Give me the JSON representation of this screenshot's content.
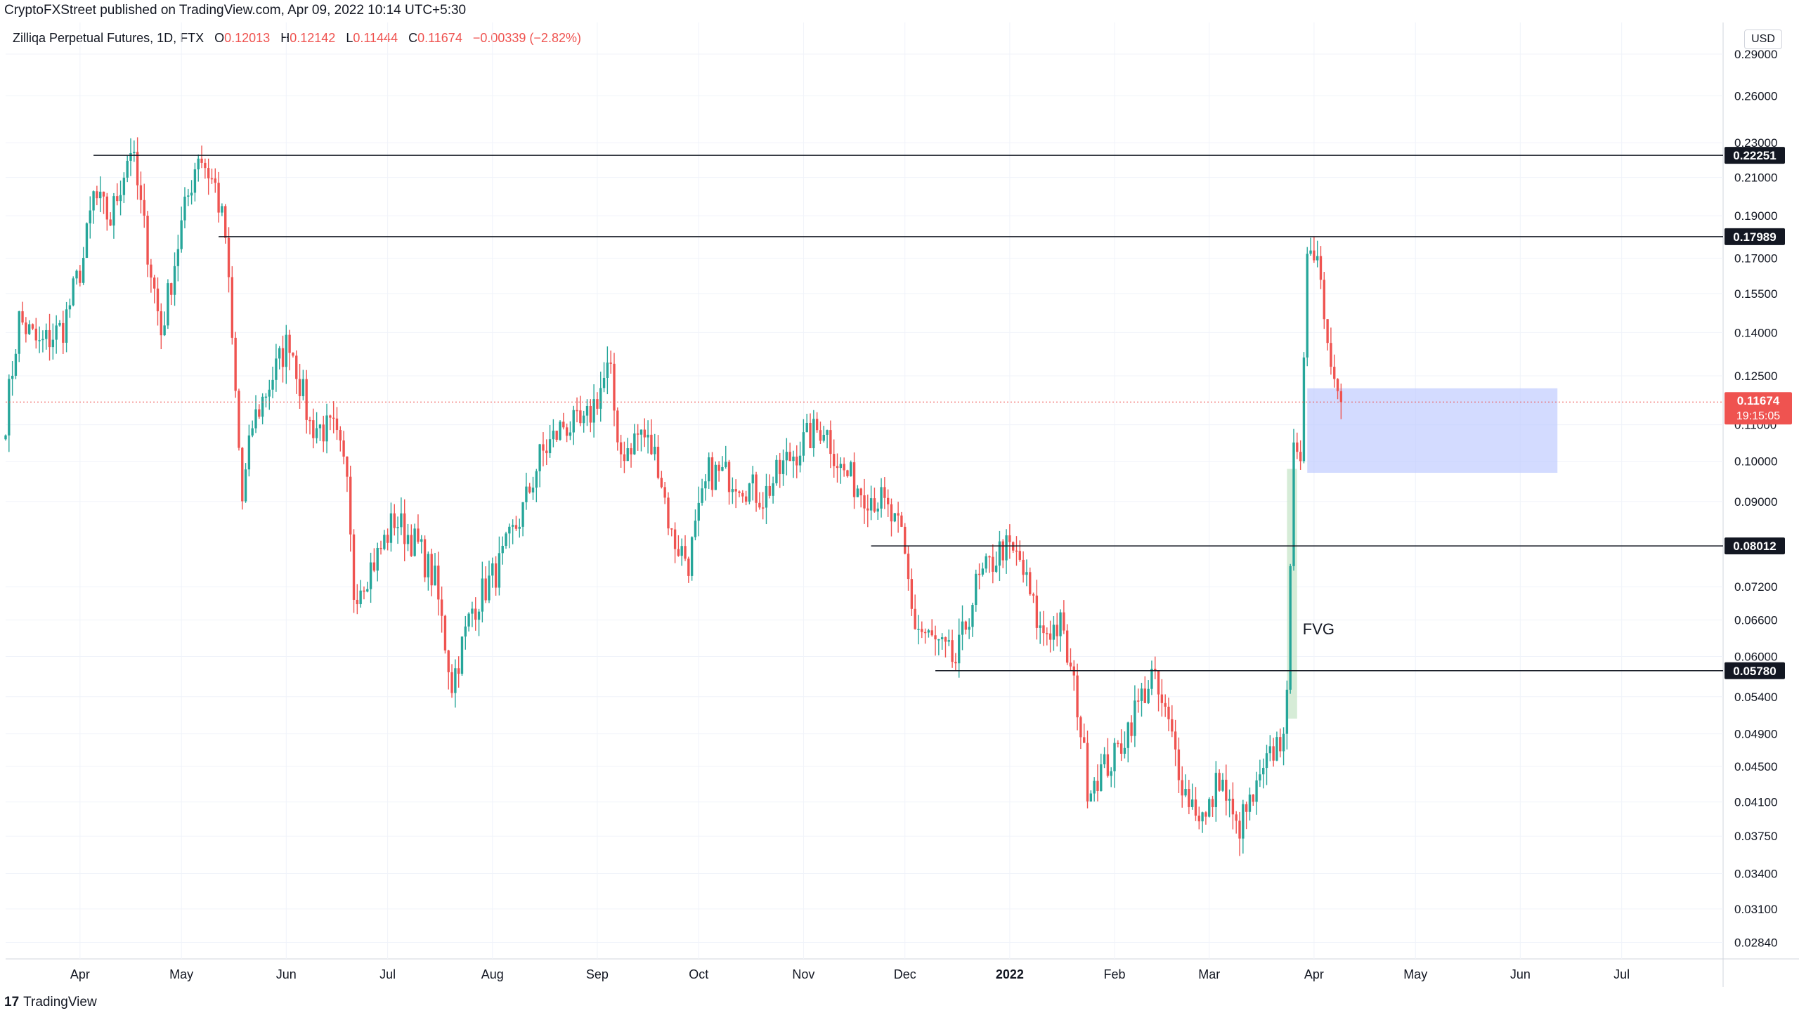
{
  "header": {
    "published": "CryptoFXStreet published on TradingView.com, Apr 09, 2022 10:14 UTC+5:30"
  },
  "legend": {
    "symbol": "Zilliqa Perpetual Futures, 1D, FTX",
    "o_label": "O",
    "o_value": "0.12013",
    "h_label": "H",
    "h_value": "0.12142",
    "l_label": "L",
    "l_value": "0.11444",
    "c_label": "C",
    "c_value": "0.11674",
    "change": "−0.00339 (−2.82%)"
  },
  "currency": "USD",
  "footer": {
    "logo": "17",
    "brand": "TradingView"
  },
  "colors": {
    "up": "#26a69a",
    "down": "#ef5350",
    "grid": "#f0f3fa",
    "zone": "#bcc8ff",
    "fvg": "#c8e6c9",
    "level": "#131722"
  },
  "chart_data": {
    "type": "candlestick",
    "title": "",
    "xlabel": "",
    "ylabel": "",
    "y_scale": "log",
    "ylim": [
      0.0272,
      0.315
    ],
    "xlim": [
      "2021-03-10",
      "2022-07-31"
    ],
    "grid": true,
    "y_ticks": [
      "0.29000",
      "0.26000",
      "0.23000",
      "0.21000",
      "0.19000",
      "0.17000",
      "0.15500",
      "0.14000",
      "0.12500",
      "0.11000",
      "0.10000",
      "0.09000",
      "0.07200",
      "0.06600",
      "0.06000",
      "0.05400",
      "0.04900",
      "0.04500",
      "0.04100",
      "0.03750",
      "0.03400",
      "0.03100",
      "0.02840"
    ],
    "x_ticks": [
      {
        "date": "2021-04-01",
        "label": "Apr",
        "bold": false
      },
      {
        "date": "2021-05-01",
        "label": "May",
        "bold": false
      },
      {
        "date": "2021-06-01",
        "label": "Jun",
        "bold": false
      },
      {
        "date": "2021-07-01",
        "label": "Jul",
        "bold": false
      },
      {
        "date": "2021-08-01",
        "label": "Aug",
        "bold": false
      },
      {
        "date": "2021-09-01",
        "label": "Sep",
        "bold": false
      },
      {
        "date": "2021-10-01",
        "label": "Oct",
        "bold": false
      },
      {
        "date": "2021-11-01",
        "label": "Nov",
        "bold": false
      },
      {
        "date": "2021-12-01",
        "label": "Dec",
        "bold": false
      },
      {
        "date": "2022-01-01",
        "label": "2022",
        "bold": true
      },
      {
        "date": "2022-02-01",
        "label": "Feb",
        "bold": false
      },
      {
        "date": "2022-03-01",
        "label": "Mar",
        "bold": false
      },
      {
        "date": "2022-04-01",
        "label": "Apr",
        "bold": false
      },
      {
        "date": "2022-05-01",
        "label": "May",
        "bold": false
      },
      {
        "date": "2022-06-01",
        "label": "Jun",
        "bold": false
      },
      {
        "date": "2022-07-01",
        "label": "Jul",
        "bold": false
      }
    ],
    "levels": [
      {
        "value": 0.22251,
        "label": "0.22251",
        "from": "2021-04-05"
      },
      {
        "value": 0.17989,
        "label": "0.17989",
        "from": "2021-05-12"
      },
      {
        "value": 0.08012,
        "label": "0.08012",
        "from": "2021-11-21"
      },
      {
        "value": 0.0578,
        "label": "0.05780",
        "from": "2021-12-10"
      }
    ],
    "last_price": {
      "value": 0.11674,
      "label": "0.11674",
      "countdown": "19:15:05"
    },
    "zone": {
      "from": "2022-03-30",
      "to": "2022-06-12",
      "high": 0.121,
      "low": 0.097
    },
    "fvg": {
      "from": "2022-03-24",
      "to": "2022-03-27",
      "high": 0.098,
      "low": 0.051,
      "label": "FVG"
    },
    "waypoints": [
      [
        "2021-03-10",
        0.112
      ],
      [
        "2021-03-14",
        0.145
      ],
      [
        "2021-03-20",
        0.135
      ],
      [
        "2021-03-27",
        0.142
      ],
      [
        "2021-04-02",
        0.17
      ],
      [
        "2021-04-05",
        0.2
      ],
      [
        "2021-04-10",
        0.188
      ],
      [
        "2021-04-16",
        0.228
      ],
      [
        "2021-04-22",
        0.165
      ],
      [
        "2021-04-25",
        0.14
      ],
      [
        "2021-05-01",
        0.185
      ],
      [
        "2021-05-06",
        0.225
      ],
      [
        "2021-05-11",
        0.205
      ],
      [
        "2021-05-14",
        0.18
      ],
      [
        "2021-05-19",
        0.09
      ],
      [
        "2021-05-22",
        0.11
      ],
      [
        "2021-05-26",
        0.12
      ],
      [
        "2021-06-02",
        0.138
      ],
      [
        "2021-06-08",
        0.11
      ],
      [
        "2021-06-15",
        0.108
      ],
      [
        "2021-06-19",
        0.096
      ],
      [
        "2021-06-21",
        0.071
      ],
      [
        "2021-06-28",
        0.078
      ],
      [
        "2021-07-03",
        0.086
      ],
      [
        "2021-07-10",
        0.08
      ],
      [
        "2021-07-15",
        0.073
      ],
      [
        "2021-07-20",
        0.056
      ],
      [
        "2021-07-26",
        0.068
      ],
      [
        "2021-08-03",
        0.076
      ],
      [
        "2021-08-10",
        0.088
      ],
      [
        "2021-08-15",
        0.101
      ],
      [
        "2021-08-22",
        0.11
      ],
      [
        "2021-08-28",
        0.109
      ],
      [
        "2021-09-05",
        0.129
      ],
      [
        "2021-09-07",
        0.101
      ],
      [
        "2021-09-14",
        0.108
      ],
      [
        "2021-09-19",
        0.1
      ],
      [
        "2021-09-23",
        0.082
      ],
      [
        "2021-09-28",
        0.077
      ],
      [
        "2021-10-04",
        0.097
      ],
      [
        "2021-10-12",
        0.096
      ],
      [
        "2021-10-20",
        0.091
      ],
      [
        "2021-10-27",
        0.1
      ],
      [
        "2021-11-02",
        0.106
      ],
      [
        "2021-11-07",
        0.11
      ],
      [
        "2021-11-12",
        0.098
      ],
      [
        "2021-11-18",
        0.093
      ],
      [
        "2021-11-24",
        0.09
      ],
      [
        "2021-11-30",
        0.082
      ],
      [
        "2021-12-04",
        0.065
      ],
      [
        "2021-12-10",
        0.062
      ],
      [
        "2021-12-16",
        0.059
      ],
      [
        "2021-12-22",
        0.072
      ],
      [
        "2021-12-30",
        0.08
      ],
      [
        "2022-01-04",
        0.077
      ],
      [
        "2022-01-10",
        0.064
      ],
      [
        "2022-01-16",
        0.065
      ],
      [
        "2022-01-21",
        0.053
      ],
      [
        "2022-01-24",
        0.043
      ],
      [
        "2022-02-01",
        0.046
      ],
      [
        "2022-02-07",
        0.052
      ],
      [
        "2022-02-12",
        0.057
      ],
      [
        "2022-02-17",
        0.05
      ],
      [
        "2022-02-22",
        0.042
      ],
      [
        "2022-02-28",
        0.039
      ],
      [
        "2022-03-04",
        0.044
      ],
      [
        "2022-03-09",
        0.038
      ],
      [
        "2022-03-15",
        0.042
      ],
      [
        "2022-03-20",
        0.047
      ],
      [
        "2022-03-23",
        0.049
      ],
      [
        "2022-03-24",
        0.055
      ],
      [
        "2022-03-26",
        0.105
      ],
      [
        "2022-03-28",
        0.1
      ],
      [
        "2022-03-30",
        0.172
      ],
      [
        "2022-04-01",
        0.175
      ],
      [
        "2022-04-04",
        0.145
      ],
      [
        "2022-04-06",
        0.128
      ],
      [
        "2022-04-08",
        0.1201
      ],
      [
        "2022-04-09",
        0.1167
      ]
    ]
  }
}
